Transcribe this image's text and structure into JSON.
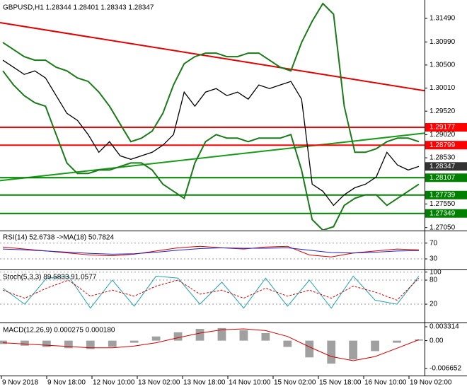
{
  "chart_data": [
    {
      "type": "line",
      "title": "GBPUSD,H1 1.28344 1.28401 1.28343 1.28347",
      "ylim": [
        1.27,
        1.3185
      ],
      "yticks": [
        {
          "value": 1.3149,
          "label": "1.31490"
        },
        {
          "value": 1.3099,
          "label": "1.30990"
        },
        {
          "value": 1.305,
          "label": "1.30500"
        },
        {
          "value": 1.3001,
          "label": "1.30010"
        },
        {
          "value": 1.2952,
          "label": "1.29520"
        },
        {
          "value": 1.2902,
          "label": "1.29020"
        },
        {
          "value": 1.2853,
          "label": "1.28530"
        },
        {
          "value": 1.2755,
          "label": "1.27550"
        },
        {
          "value": 1.2705,
          "label": "1.27050"
        }
      ],
      "levels": [
        {
          "value": 1.29177,
          "color": "#ff0000"
        },
        {
          "value": 1.28799,
          "color": "#ff0000"
        },
        {
          "value": 1.28107,
          "color": "#008000"
        },
        {
          "value": 1.27739,
          "color": "#008000"
        },
        {
          "value": 1.27349,
          "color": "#008000"
        }
      ],
      "trendlines": [
        {
          "color": "#e00000",
          "values": [
            1.31399,
            1.29955
          ]
        },
        {
          "color": "#1a9a1a",
          "values": [
            1.28045,
            1.29053
          ]
        }
      ],
      "series": [
        {
          "color": "#000000",
          "width": 1.3,
          "show_last": true,
          "values": [
            1.30602,
            1.30452,
            1.30301,
            1.30376,
            1.30226,
            1.2985,
            1.29474,
            1.29324,
            1.29023,
            1.28647,
            1.28873,
            1.28572,
            1.28497,
            1.28572,
            1.28647,
            1.28797,
            1.29023,
            1.29925,
            1.29624,
            1.29925,
            1.3,
            1.2985,
            1.29925,
            1.29775,
            1.30076,
            1.3,
            1.30076,
            1.30151,
            1.29775,
            1.2797,
            1.2782,
            1.27519,
            1.27745,
            1.27895,
            1.2797,
            1.28121,
            1.28647,
            1.28376,
            1.28271,
            1.28347
          ]
        },
        {
          "color": "#1a7a1a",
          "width": 2,
          "values": [
            1.30978,
            1.30827,
            1.30677,
            1.30602,
            1.30602,
            1.30452,
            1.30376,
            1.30226,
            1.30151,
            1.29925,
            1.29624,
            1.29248,
            1.28873,
            1.28948,
            1.29098,
            1.29474,
            1.30076,
            1.30527,
            1.30677,
            1.30752,
            1.30752,
            1.30677,
            1.30677,
            1.30752,
            1.30752,
            1.30602,
            1.30452,
            1.30376,
            1.30978,
            1.31429,
            1.31805,
            1.31579,
            1.29624,
            1.28647,
            1.28647,
            1.28722,
            1.28873,
            1.28948,
            1.28948,
            1.28873
          ]
        },
        {
          "color": "#1a7a1a",
          "width": 2,
          "values": [
            1.30376,
            1.30076,
            1.2985,
            1.297,
            1.29624,
            1.29023,
            1.28421,
            1.28196,
            1.28196,
            1.28271,
            1.28271,
            1.28346,
            1.28421,
            1.28421,
            1.28271,
            1.2797,
            1.2782,
            1.2767,
            1.28421,
            1.28873,
            1.29023,
            1.28948,
            1.28948,
            1.28873,
            1.28948,
            1.28948,
            1.28948,
            1.29023,
            1.28271,
            1.27218,
            1.26993,
            1.27068,
            1.27519,
            1.2767,
            1.27745,
            1.27745,
            1.27519,
            1.2767,
            1.2782,
            1.2797
          ]
        }
      ]
    },
    {
      "type": "line",
      "title": "RSI(14) 52.6738 ->MA(18) 50.7824",
      "ylim": [
        5,
        100
      ],
      "yticks": [
        70,
        30
      ],
      "grid": true,
      "series": [
        {
          "color": "#d00000",
          "width": 1,
          "values": [
            60,
            55,
            50,
            45,
            40,
            38,
            42,
            50,
            58,
            62,
            58,
            55,
            60,
            62,
            40,
            35,
            45,
            50,
            55,
            53
          ]
        },
        {
          "color": "#2020c0",
          "width": 1,
          "values": [
            55,
            53,
            50,
            47,
            44,
            42,
            43,
            47,
            52,
            56,
            58,
            57,
            57,
            58,
            52,
            46,
            45,
            47,
            50,
            51
          ]
        }
      ]
    },
    {
      "type": "line",
      "title": "Stoch(5,3,3) 89.5833 91.0577",
      "ylim": [
        -24,
        103
      ],
      "yticks": [
        100,
        80,
        20
      ],
      "grid": true,
      "series": [
        {
          "color": "#20a0b0",
          "width": 1,
          "values": [
            60,
            20,
            85,
            90,
            10,
            80,
            15,
            90,
            85,
            20,
            75,
            10,
            85,
            15,
            80,
            10,
            90,
            30,
            20,
            90
          ]
        },
        {
          "color": "#d00000",
          "width": 1,
          "dash": true,
          "values": [
            55,
            35,
            60,
            80,
            40,
            55,
            40,
            65,
            80,
            45,
            55,
            35,
            60,
            40,
            55,
            35,
            65,
            50,
            30,
            85
          ]
        }
      ]
    },
    {
      "type": "macd",
      "title": "MACD(12,26,9) 0.000275 0.000180",
      "ylim": [
        -0.008172,
        0.00399
      ],
      "yticks": [
        0.003314,
        {
          "value": 0,
          "label": "0.00"
        },
        -0.006652
      ],
      "series": [
        {
          "color": "#a0a0a0",
          "kind": "bar",
          "values": [
            -0.0008,
            -0.0012,
            -0.0015,
            -0.0018,
            -0.002,
            -0.0015,
            -0.0005,
            0.001,
            0.002,
            0.0028,
            0.003,
            0.0025,
            0.0018,
            -0.0015,
            -0.004,
            -0.0055,
            -0.0045,
            -0.0025,
            -0.0005,
            0.0003
          ]
        },
        {
          "color": "#d00000",
          "width": 1,
          "values": [
            -0.0005,
            -0.0008,
            -0.0011,
            -0.0014,
            -0.0017,
            -0.0017,
            -0.0013,
            -0.0005,
            0.0007,
            0.0018,
            0.0026,
            0.0028,
            0.0024,
            0.001,
            -0.0015,
            -0.0038,
            -0.0048,
            -0.0038,
            -0.0018,
            0.0002
          ]
        }
      ]
    }
  ],
  "x_axis": {
    "labels": [
      "9 Nov 2018",
      "9 Nov 18:00",
      "12 Nov 10:00",
      "13 Nov 02:00",
      "13 Nov 18:00",
      "14 Nov 10:00",
      "15 Nov 02:00",
      "15 Nov 18:00",
      "16 Nov 10:00",
      "19 Nov 02:00"
    ]
  }
}
